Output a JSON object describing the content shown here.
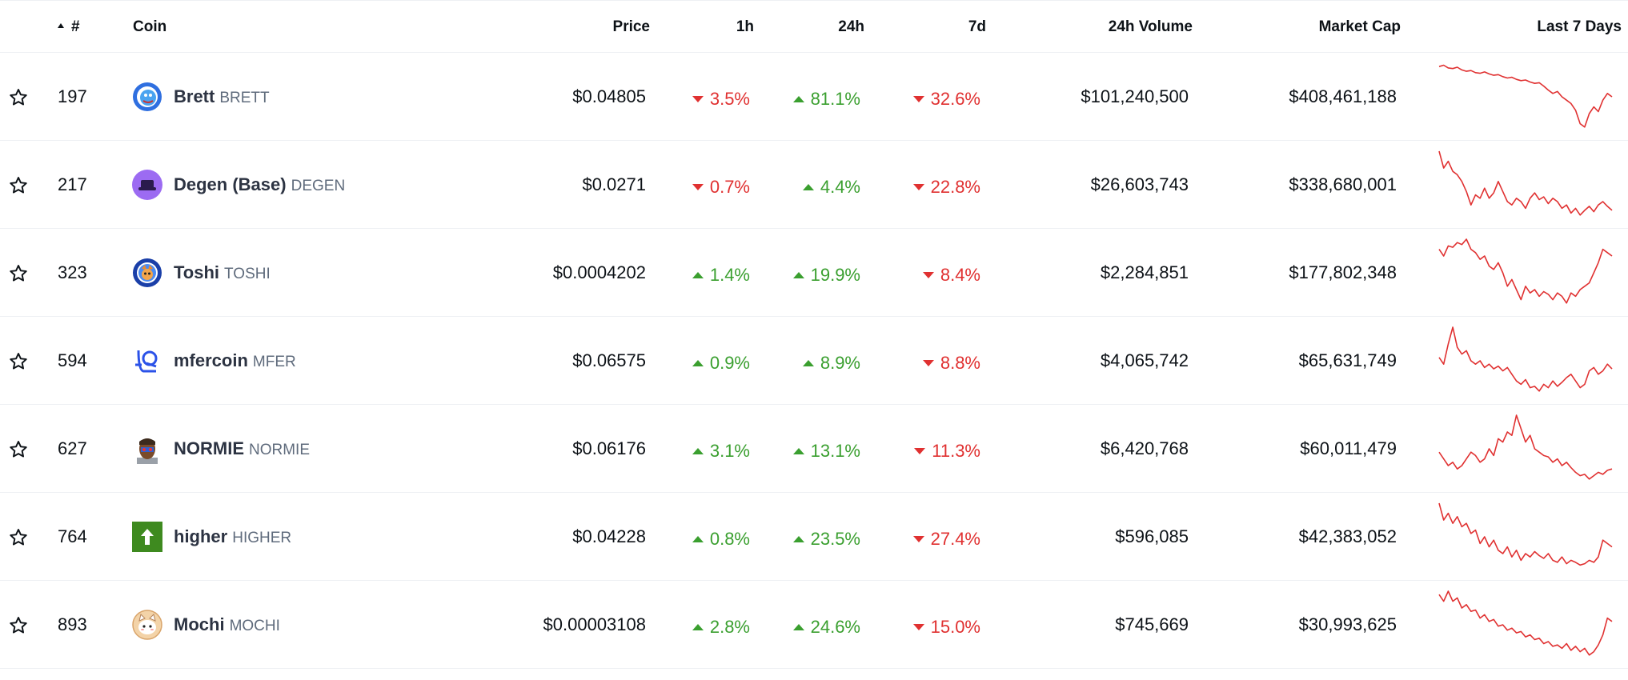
{
  "header": {
    "rank": "#",
    "coin": "Coin",
    "price": "Price",
    "h1": "1h",
    "h24": "24h",
    "d7": "7d",
    "volume": "24h Volume",
    "mcap": "Market Cap",
    "last7": "Last 7 Days"
  },
  "colors": {
    "up": "#3a9f2f",
    "down": "#e03131",
    "spark": "#e03131"
  },
  "rows": [
    {
      "rank": "197",
      "name": "Brett",
      "symbol": "BRETT",
      "icon": "brett-icon",
      "price": "$0.04805",
      "h1": {
        "text": "3.5%",
        "dir": "down"
      },
      "h24": {
        "text": "81.1%",
        "dir": "up"
      },
      "d7": {
        "text": "32.6%",
        "dir": "down"
      },
      "volume": "$101,240,500",
      "mcap": "$408,461,188",
      "spark": [
        0.95,
        0.97,
        0.93,
        0.92,
        0.94,
        0.9,
        0.88,
        0.89,
        0.86,
        0.85,
        0.87,
        0.84,
        0.82,
        0.83,
        0.8,
        0.78,
        0.79,
        0.76,
        0.74,
        0.75,
        0.72,
        0.7,
        0.71,
        0.66,
        0.6,
        0.55,
        0.58,
        0.5,
        0.45,
        0.4,
        0.3,
        0.1,
        0.05,
        0.25,
        0.35,
        0.28,
        0.45,
        0.55,
        0.5
      ]
    },
    {
      "rank": "217",
      "name": "Degen (Base)",
      "symbol": "DEGEN",
      "icon": "degen-icon",
      "price": "$0.0271",
      "h1": {
        "text": "0.7%",
        "dir": "down"
      },
      "h24": {
        "text": "4.4%",
        "dir": "up"
      },
      "d7": {
        "text": "22.8%",
        "dir": "down"
      },
      "volume": "$26,603,743",
      "mcap": "$338,680,001",
      "spark": [
        1.0,
        0.75,
        0.85,
        0.7,
        0.65,
        0.55,
        0.4,
        0.2,
        0.35,
        0.3,
        0.45,
        0.3,
        0.38,
        0.55,
        0.4,
        0.25,
        0.2,
        0.3,
        0.25,
        0.15,
        0.3,
        0.38,
        0.28,
        0.32,
        0.22,
        0.3,
        0.25,
        0.15,
        0.2,
        0.08,
        0.15,
        0.05,
        0.12,
        0.18,
        0.1,
        0.2,
        0.25,
        0.18,
        0.12
      ]
    },
    {
      "rank": "323",
      "name": "Toshi",
      "symbol": "TOSHI",
      "icon": "toshi-icon",
      "price": "$0.0004202",
      "h1": {
        "text": "1.4%",
        "dir": "up"
      },
      "h24": {
        "text": "19.9%",
        "dir": "up"
      },
      "d7": {
        "text": "8.4%",
        "dir": "down"
      },
      "volume": "$2,284,851",
      "mcap": "$177,802,348",
      "spark": [
        0.85,
        0.75,
        0.9,
        0.88,
        0.95,
        0.92,
        1.0,
        0.85,
        0.8,
        0.7,
        0.75,
        0.6,
        0.55,
        0.65,
        0.5,
        0.3,
        0.4,
        0.25,
        0.1,
        0.3,
        0.2,
        0.25,
        0.15,
        0.22,
        0.18,
        0.1,
        0.2,
        0.15,
        0.05,
        0.2,
        0.15,
        0.25,
        0.3,
        0.35,
        0.5,
        0.65,
        0.85,
        0.8,
        0.75
      ]
    },
    {
      "rank": "594",
      "name": "mfercoin",
      "symbol": "MFER",
      "icon": "mfer-icon",
      "price": "$0.06575",
      "h1": {
        "text": "0.9%",
        "dir": "up"
      },
      "h24": {
        "text": "8.9%",
        "dir": "up"
      },
      "d7": {
        "text": "8.8%",
        "dir": "down"
      },
      "volume": "$4,065,742",
      "mcap": "$65,631,749",
      "spark": [
        0.55,
        0.45,
        0.75,
        1.0,
        0.7,
        0.6,
        0.65,
        0.5,
        0.45,
        0.5,
        0.4,
        0.45,
        0.38,
        0.42,
        0.35,
        0.4,
        0.3,
        0.2,
        0.15,
        0.22,
        0.1,
        0.12,
        0.05,
        0.15,
        0.1,
        0.2,
        0.12,
        0.18,
        0.25,
        0.3,
        0.2,
        0.1,
        0.15,
        0.35,
        0.4,
        0.3,
        0.35,
        0.45,
        0.38
      ]
    },
    {
      "rank": "627",
      "name": "NORMIE",
      "symbol": "NORMIE",
      "icon": "normie-icon",
      "price": "$0.06176",
      "h1": {
        "text": "3.1%",
        "dir": "up"
      },
      "h24": {
        "text": "13.1%",
        "dir": "up"
      },
      "d7": {
        "text": "11.3%",
        "dir": "down"
      },
      "volume": "$6,420,768",
      "mcap": "$60,011,479",
      "spark": [
        0.45,
        0.35,
        0.25,
        0.3,
        0.2,
        0.25,
        0.35,
        0.45,
        0.4,
        0.3,
        0.35,
        0.5,
        0.4,
        0.65,
        0.6,
        0.75,
        0.7,
        1.0,
        0.8,
        0.6,
        0.7,
        0.5,
        0.45,
        0.4,
        0.38,
        0.3,
        0.35,
        0.25,
        0.3,
        0.22,
        0.15,
        0.1,
        0.12,
        0.05,
        0.1,
        0.15,
        0.12,
        0.18,
        0.2
      ]
    },
    {
      "rank": "764",
      "name": "higher",
      "symbol": "HIGHER",
      "icon": "higher-icon",
      "price": "$0.04228",
      "h1": {
        "text": "0.8%",
        "dir": "up"
      },
      "h24": {
        "text": "23.5%",
        "dir": "up"
      },
      "d7": {
        "text": "27.4%",
        "dir": "down"
      },
      "volume": "$596,085",
      "mcap": "$42,383,052",
      "spark": [
        1.0,
        0.75,
        0.85,
        0.7,
        0.8,
        0.65,
        0.7,
        0.55,
        0.6,
        0.4,
        0.5,
        0.35,
        0.45,
        0.3,
        0.25,
        0.35,
        0.2,
        0.3,
        0.15,
        0.25,
        0.2,
        0.28,
        0.22,
        0.18,
        0.25,
        0.15,
        0.12,
        0.2,
        0.1,
        0.15,
        0.12,
        0.08,
        0.1,
        0.15,
        0.12,
        0.2,
        0.45,
        0.4,
        0.35
      ]
    },
    {
      "rank": "893",
      "name": "Mochi",
      "symbol": "MOCHI",
      "icon": "mochi-icon",
      "price": "$0.00003108",
      "h1": {
        "text": "2.8%",
        "dir": "up"
      },
      "h24": {
        "text": "24.6%",
        "dir": "up"
      },
      "d7": {
        "text": "15.0%",
        "dir": "down"
      },
      "volume": "$745,669",
      "mcap": "$30,993,625",
      "spark": [
        0.95,
        0.85,
        1.0,
        0.85,
        0.9,
        0.75,
        0.8,
        0.7,
        0.72,
        0.6,
        0.65,
        0.55,
        0.58,
        0.48,
        0.5,
        0.42,
        0.45,
        0.38,
        0.4,
        0.32,
        0.35,
        0.28,
        0.3,
        0.22,
        0.25,
        0.18,
        0.2,
        0.15,
        0.22,
        0.12,
        0.18,
        0.1,
        0.15,
        0.05,
        0.1,
        0.2,
        0.35,
        0.6,
        0.55
      ]
    }
  ]
}
